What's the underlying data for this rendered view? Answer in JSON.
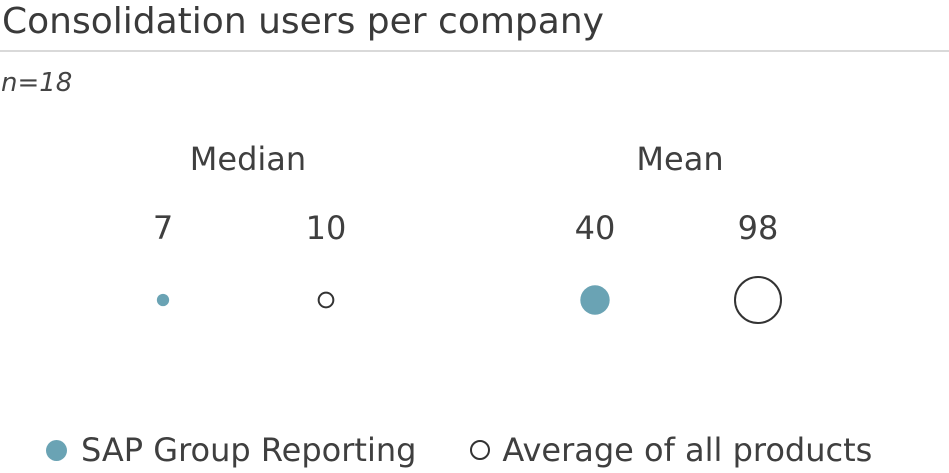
{
  "chart_data": {
    "type": "scatter",
    "title": "Consolidation users per company",
    "subtitle": "n=18",
    "groups": [
      {
        "label": "Median",
        "items": [
          {
            "series": "SAP Group Reporting",
            "value": 7
          },
          {
            "series": "Average of all products",
            "value": 10
          }
        ]
      },
      {
        "label": "Mean",
        "items": [
          {
            "series": "SAP Group Reporting",
            "value": 40
          },
          {
            "series": "Average of all products",
            "value": 98
          }
        ]
      }
    ],
    "series": [
      {
        "name": "SAP Group Reporting",
        "style": "filled",
        "color": "#6aa3b4"
      },
      {
        "name": "Average of all products",
        "style": "hollow",
        "color": "#333333"
      }
    ],
    "legend_position": "bottom-left"
  }
}
